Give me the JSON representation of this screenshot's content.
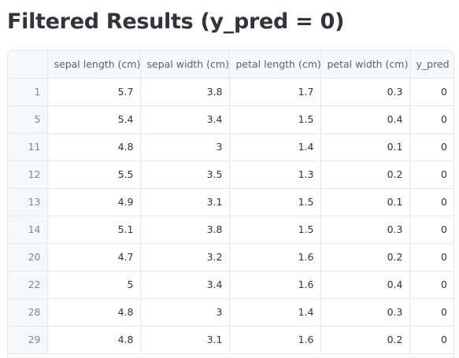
{
  "title": "Filtered Results (y_pred = 0)",
  "table": {
    "columns": [
      "",
      "sepal length (cm)",
      "sepal width (cm)",
      "petal length (cm)",
      "petal width (cm)",
      "y_pred"
    ],
    "rows": [
      [
        "1",
        "5.7",
        "3.8",
        "1.7",
        "0.3",
        "0"
      ],
      [
        "5",
        "5.4",
        "3.4",
        "1.5",
        "0.4",
        "0"
      ],
      [
        "11",
        "4.8",
        "3",
        "1.4",
        "0.1",
        "0"
      ],
      [
        "12",
        "5.5",
        "3.5",
        "1.3",
        "0.2",
        "0"
      ],
      [
        "13",
        "4.9",
        "3.1",
        "1.5",
        "0.1",
        "0"
      ],
      [
        "14",
        "5.1",
        "3.8",
        "1.5",
        "0.3",
        "0"
      ],
      [
        "20",
        "4.7",
        "3.2",
        "1.6",
        "0.2",
        "0"
      ],
      [
        "22",
        "5",
        "3.4",
        "1.6",
        "0.4",
        "0"
      ],
      [
        "28",
        "4.8",
        "3",
        "1.4",
        "0.3",
        "0"
      ],
      [
        "29",
        "4.8",
        "3.1",
        "1.6",
        "0.2",
        "0"
      ]
    ]
  },
  "colors": {
    "text": "#31333f",
    "header_bg": "#f7f8fa",
    "border": "#e6e8ec"
  }
}
